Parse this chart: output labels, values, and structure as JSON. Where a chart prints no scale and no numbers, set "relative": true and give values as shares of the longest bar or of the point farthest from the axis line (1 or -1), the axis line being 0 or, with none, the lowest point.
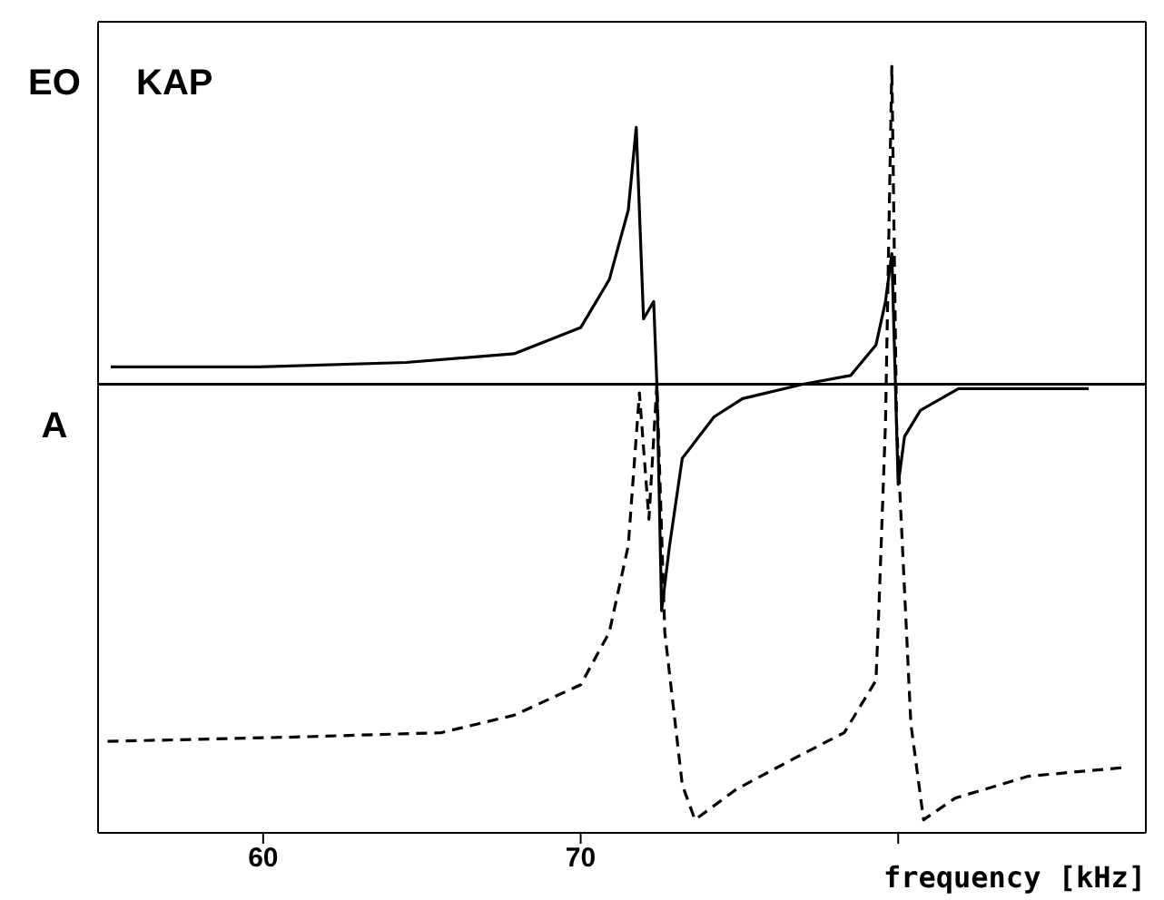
{
  "chart_data": {
    "type": "line",
    "relative": true,
    "xlabel": "frequency [kHz]",
    "annotations": [
      "EO",
      "KAP",
      "A"
    ],
    "xlim": [
      54.8,
      87.8
    ],
    "xticks": [
      60,
      70,
      {
        "value": 80,
        "label": null
      }
    ],
    "marker": "none",
    "series": [
      {
        "color": "#000000",
        "line_style": "solid",
        "x": [
          55.2,
          59.9,
          64.5,
          67.9,
          70.0,
          70.9,
          71.5,
          71.75,
          71.98,
          72.3,
          72.4,
          72.55,
          72.8,
          73.2,
          74.2,
          75.1,
          77.0,
          78.5,
          79.3,
          79.6,
          79.8,
          80.0,
          80.2,
          80.7,
          81.9,
          86.0
        ],
        "values": [
          0.04,
          0.04,
          0.05,
          0.07,
          0.13,
          0.24,
          0.4,
          0.59,
          0.15,
          0.19,
          0,
          -0.52,
          -0.37,
          -0.17,
          -0.075,
          -0.033,
          0,
          0.02,
          0.09,
          0.19,
          0.3,
          -0.23,
          -0.12,
          -0.06,
          -0.01,
          -0.01
        ]
      },
      {
        "color": "#000000",
        "line_style": "dashed",
        "x": [
          55.1,
          61.0,
          65.6,
          67.9,
          70.0,
          70.9,
          71.5,
          71.75,
          71.85,
          72.15,
          72.4,
          72.65,
          73.2,
          73.6,
          74.9,
          76.7,
          78.3,
          79.3,
          79.4,
          79.6,
          79.8,
          79.95,
          80.4,
          80.8,
          81.8,
          84.1,
          87.1
        ],
        "values": [
          -0.82,
          -0.81,
          -0.8,
          -0.76,
          -0.69,
          -0.57,
          -0.37,
          -0.12,
          -0.02,
          -0.31,
          0,
          -0.57,
          -0.92,
          -1,
          -0.93,
          -0.86,
          -0.8,
          -0.68,
          -0.5,
          -0.09,
          0.73,
          -0.09,
          -0.78,
          -1,
          -0.95,
          -0.9,
          -0.88
        ]
      }
    ]
  }
}
